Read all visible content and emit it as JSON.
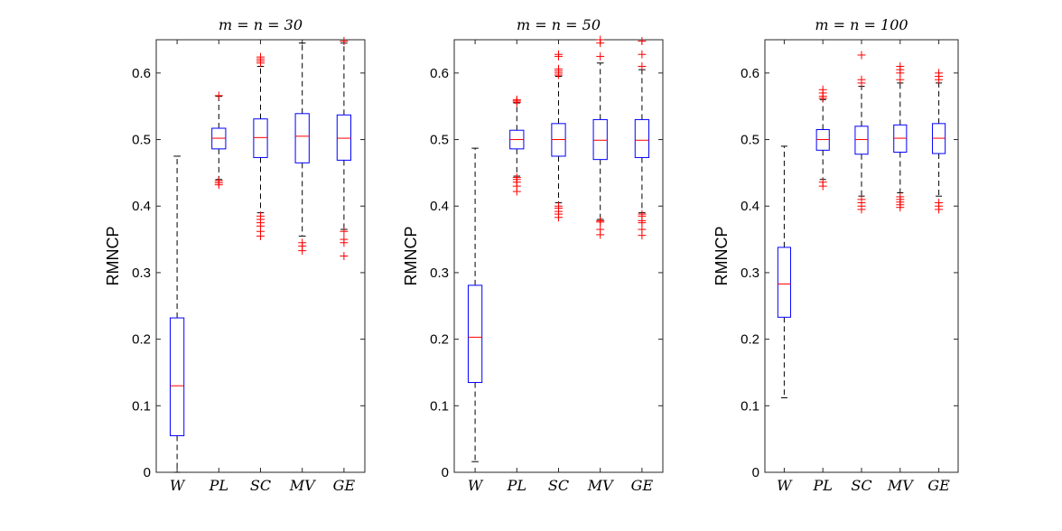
{
  "chart_data": [
    {
      "type": "boxplot",
      "title": "m = n = 30",
      "ylabel": "RMNCP",
      "xlabel": "",
      "ylim": [
        0,
        0.65
      ],
      "yticks": [
        0,
        0.1,
        0.2,
        0.3,
        0.4,
        0.5,
        0.6
      ],
      "ytick_labels": [
        "0",
        "0.1",
        "0.2",
        "0.3",
        "0.4",
        "0.5",
        "0.6"
      ],
      "categories": [
        "W",
        "PL",
        "SC",
        "MV",
        "GE"
      ],
      "boxes": [
        {
          "name": "W",
          "q1": 0.055,
          "median": 0.13,
          "q3": 0.232,
          "whisker_low": 0.0,
          "whisker_high": 0.475,
          "outliers": []
        },
        {
          "name": "PL",
          "q1": 0.486,
          "median": 0.502,
          "q3": 0.517,
          "whisker_low": 0.44,
          "whisker_high": 0.565,
          "outliers": [
            0.432,
            0.435,
            0.438,
            0.566
          ]
        },
        {
          "name": "SC",
          "q1": 0.473,
          "median": 0.503,
          "q3": 0.531,
          "whisker_low": 0.39,
          "whisker_high": 0.61,
          "outliers": [
            0.355,
            0.362,
            0.37,
            0.375,
            0.38,
            0.385,
            0.615,
            0.618,
            0.621,
            0.624
          ]
        },
        {
          "name": "MV",
          "q1": 0.465,
          "median": 0.505,
          "q3": 0.539,
          "whisker_low": 0.355,
          "whisker_high": 0.645,
          "outliers": [
            0.333,
            0.34,
            0.345
          ]
        },
        {
          "name": "GE",
          "q1": 0.469,
          "median": 0.502,
          "q3": 0.537,
          "whisker_low": 0.365,
          "whisker_high": 0.645,
          "outliers": [
            0.325,
            0.345,
            0.35,
            0.362,
            0.648
          ]
        }
      ]
    },
    {
      "type": "boxplot",
      "title": "m = n = 50",
      "ylabel": "RMNCP",
      "xlabel": "",
      "ylim": [
        0,
        0.65
      ],
      "yticks": [
        0,
        0.1,
        0.2,
        0.3,
        0.4,
        0.5,
        0.6
      ],
      "ytick_labels": [
        "0",
        "0.1",
        "0.2",
        "0.3",
        "0.4",
        "0.5",
        "0.6"
      ],
      "categories": [
        "W",
        "PL",
        "SC",
        "MV",
        "GE"
      ],
      "boxes": [
        {
          "name": "W",
          "q1": 0.135,
          "median": 0.203,
          "q3": 0.281,
          "whisker_low": 0.016,
          "whisker_high": 0.487,
          "outliers": []
        },
        {
          "name": "PL",
          "q1": 0.486,
          "median": 0.5,
          "q3": 0.514,
          "whisker_low": 0.445,
          "whisker_high": 0.555,
          "outliers": [
            0.422,
            0.43,
            0.436,
            0.44,
            0.443,
            0.556,
            0.558,
            0.56
          ]
        },
        {
          "name": "SC",
          "q1": 0.475,
          "median": 0.5,
          "q3": 0.524,
          "whisker_low": 0.405,
          "whisker_high": 0.595,
          "outliers": [
            0.383,
            0.388,
            0.392,
            0.397,
            0.4,
            0.597,
            0.6,
            0.603,
            0.606,
            0.625,
            0.628
          ]
        },
        {
          "name": "MV",
          "q1": 0.47,
          "median": 0.499,
          "q3": 0.53,
          "whisker_low": 0.38,
          "whisker_high": 0.615,
          "outliers": [
            0.357,
            0.365,
            0.376,
            0.378,
            0.625,
            0.645,
            0.65
          ]
        },
        {
          "name": "GE",
          "q1": 0.473,
          "median": 0.499,
          "q3": 0.53,
          "whisker_low": 0.39,
          "whisker_high": 0.605,
          "outliers": [
            0.356,
            0.365,
            0.375,
            0.378,
            0.385,
            0.388,
            0.61,
            0.628,
            0.648
          ]
        }
      ]
    },
    {
      "type": "boxplot",
      "title": "m = n = 100",
      "ylabel": "RMNCP",
      "xlabel": "",
      "ylim": [
        0,
        0.65
      ],
      "yticks": [
        0,
        0.1,
        0.2,
        0.3,
        0.4,
        0.5,
        0.6
      ],
      "ytick_labels": [
        "0",
        "0.1",
        "0.2",
        "0.3",
        "0.4",
        "0.5",
        "0.6"
      ],
      "categories": [
        "W",
        "PL",
        "SC",
        "MV",
        "GE"
      ],
      "boxes": [
        {
          "name": "W",
          "q1": 0.233,
          "median": 0.283,
          "q3": 0.338,
          "whisker_low": 0.112,
          "whisker_high": 0.49,
          "outliers": []
        },
        {
          "name": "PL",
          "q1": 0.484,
          "median": 0.5,
          "q3": 0.515,
          "whisker_low": 0.44,
          "whisker_high": 0.56,
          "outliers": [
            0.43,
            0.436,
            0.562,
            0.565,
            0.57,
            0.575
          ]
        },
        {
          "name": "SC",
          "q1": 0.478,
          "median": 0.5,
          "q3": 0.52,
          "whisker_low": 0.415,
          "whisker_high": 0.58,
          "outliers": [
            0.395,
            0.4,
            0.405,
            0.41,
            0.585,
            0.59,
            0.627
          ]
        },
        {
          "name": "MV",
          "q1": 0.481,
          "median": 0.502,
          "q3": 0.522,
          "whisker_low": 0.42,
          "whisker_high": 0.585,
          "outliers": [
            0.398,
            0.402,
            0.406,
            0.41,
            0.414,
            0.59,
            0.6,
            0.605,
            0.61
          ]
        },
        {
          "name": "GE",
          "q1": 0.479,
          "median": 0.502,
          "q3": 0.524,
          "whisker_low": 0.415,
          "whisker_high": 0.585,
          "outliers": [
            0.395,
            0.4,
            0.405,
            0.59,
            0.595,
            0.6
          ]
        }
      ]
    }
  ],
  "colors": {
    "box": "#0000ff",
    "median": "#ff0000",
    "outlier": "#ff0000",
    "whisker": "#000000",
    "axes": "#262626"
  }
}
